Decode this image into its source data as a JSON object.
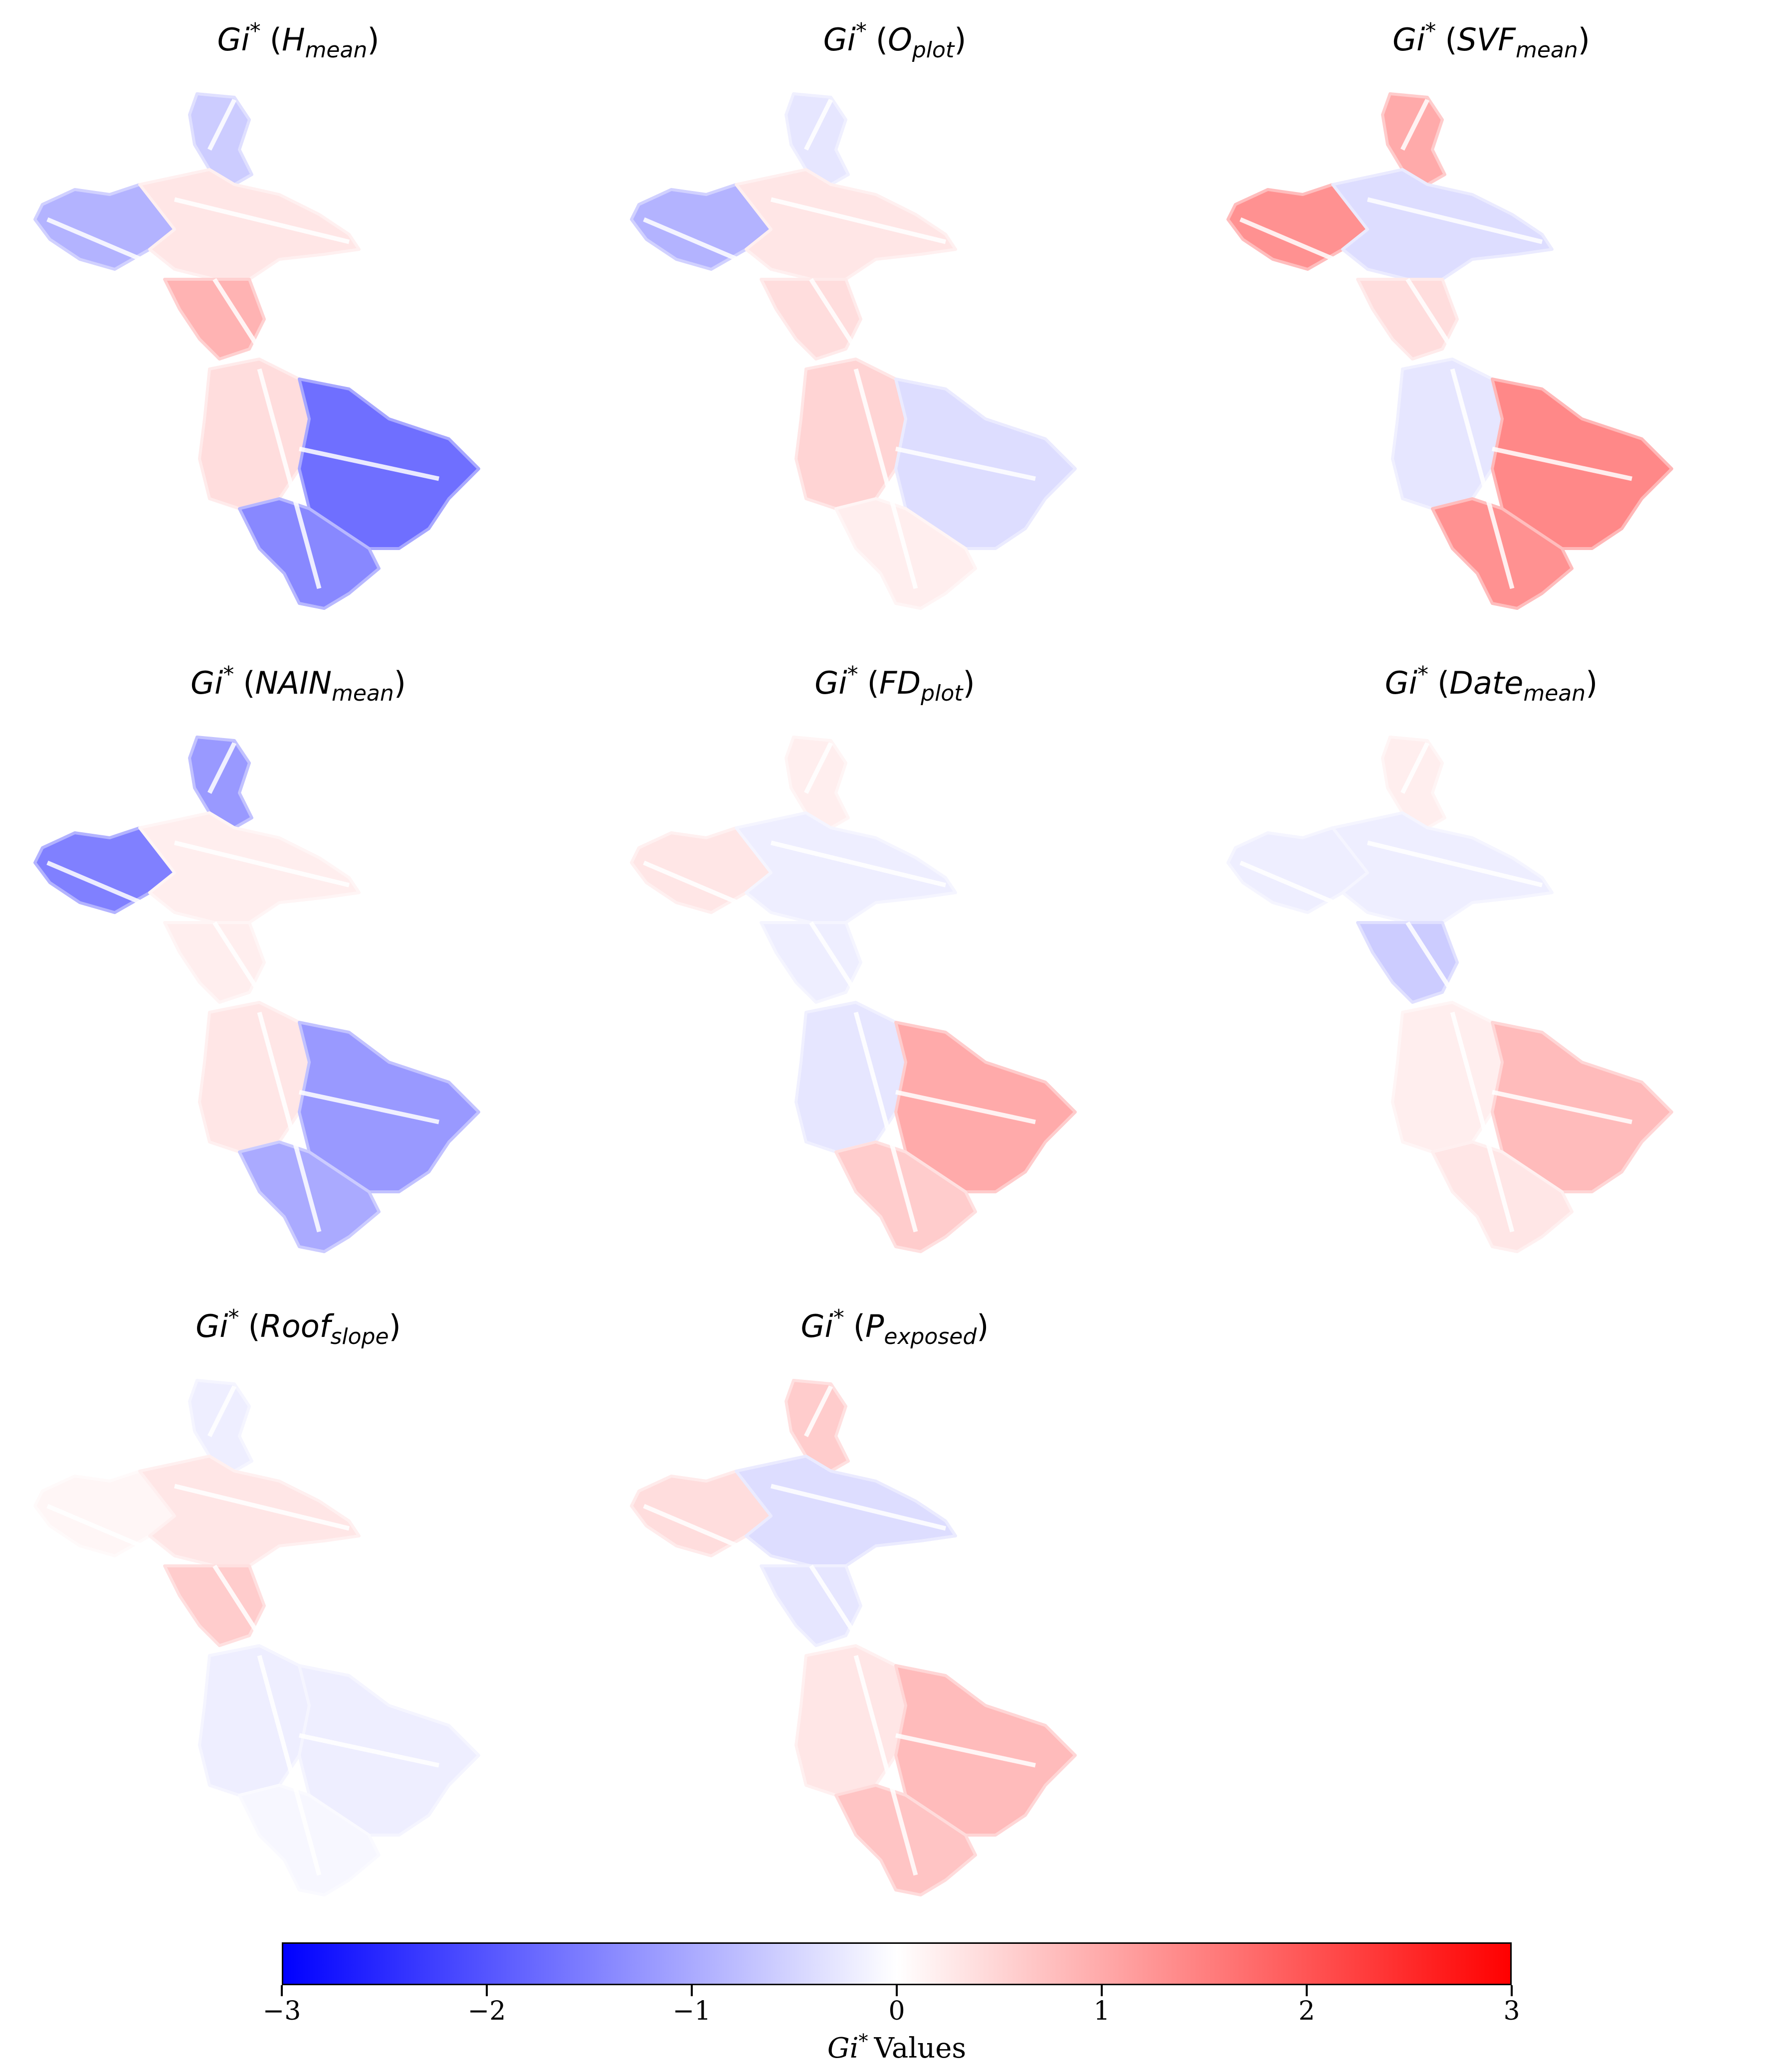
{
  "chart_data": {
    "type": "heatmap",
    "colormap": "bwr",
    "colors": {
      "min": "#0000ff",
      "mid": "#ffffff",
      "max": "#ff0000"
    },
    "vmin": -3,
    "vmax": 3,
    "panels": [
      {
        "base": "Gi",
        "star": "*",
        "var": "H",
        "sub": "mean",
        "regions": {
          "north": -0.6,
          "west": -0.9,
          "center": 0.3,
          "middle": 0.9,
          "south_west": 0.4,
          "south_east": -1.7,
          "south": -1.4
        }
      },
      {
        "base": "Gi",
        "star": "*",
        "var": "O",
        "sub": "plot",
        "regions": {
          "north": -0.3,
          "west": -0.9,
          "center": 0.3,
          "middle": 0.4,
          "south_west": 0.5,
          "south_east": -0.4,
          "south": 0.2
        }
      },
      {
        "base": "Gi",
        "star": "*",
        "var": "SVF",
        "sub": "mean",
        "regions": {
          "north": 1.0,
          "west": 1.3,
          "center": -0.4,
          "middle": 0.4,
          "south_west": -0.3,
          "south_east": 1.4,
          "south": 1.3
        }
      },
      {
        "base": "Gi",
        "star": "*",
        "var": "NAIN",
        "sub": "mean",
        "regions": {
          "north": -1.2,
          "west": -1.5,
          "center": 0.2,
          "middle": 0.2,
          "south_west": 0.3,
          "south_east": -1.2,
          "south": -1.0
        }
      },
      {
        "base": "Gi",
        "star": "*",
        "var": "FD",
        "sub": "plot",
        "regions": {
          "north": 0.2,
          "west": 0.3,
          "center": -0.2,
          "middle": -0.2,
          "south_west": -0.3,
          "south_east": 1.0,
          "south": 0.6
        }
      },
      {
        "base": "Gi",
        "star": "*",
        "var": "Date",
        "sub": "mean",
        "regions": {
          "north": 0.2,
          "west": -0.2,
          "center": -0.2,
          "middle": -0.6,
          "south_west": 0.2,
          "south_east": 0.8,
          "south": 0.3
        }
      },
      {
        "base": "Gi",
        "star": "*",
        "var": "Roof",
        "sub": "slope",
        "regions": {
          "north": -0.2,
          "west": 0.1,
          "center": 0.3,
          "middle": 0.6,
          "south_west": -0.2,
          "south_east": -0.2,
          "south": -0.1
        }
      },
      {
        "base": "Gi",
        "star": "*",
        "var": "P",
        "sub": "exposed",
        "regions": {
          "north": 0.6,
          "west": 0.4,
          "center": -0.4,
          "middle": -0.3,
          "south_west": 0.3,
          "south_east": 0.8,
          "south": 0.7
        }
      }
    ],
    "colorbar": {
      "ticks": [
        -3,
        -2,
        -1,
        0,
        1,
        2,
        3
      ],
      "tick_labels": [
        "−3",
        "−2",
        "−1",
        "0",
        "1",
        "2",
        "3"
      ],
      "label": {
        "base": "Gi",
        "star": "*",
        "rest": "Values"
      }
    }
  }
}
